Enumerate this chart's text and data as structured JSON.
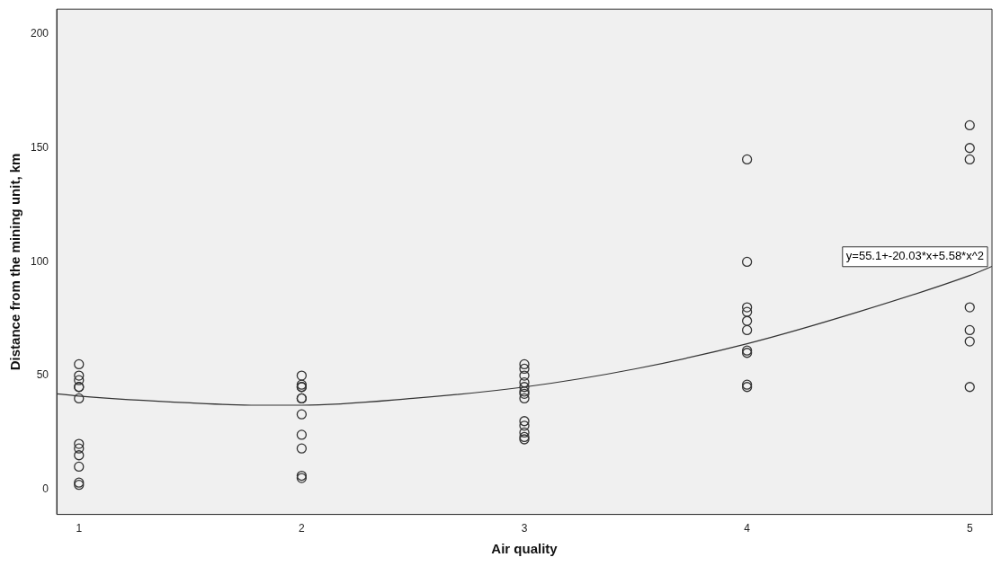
{
  "chart_data": {
    "type": "scatter",
    "xlabel": "Air quality",
    "ylabel": "Distance from the mining unit, km",
    "xlim": [
      0.9,
      5.1
    ],
    "ylim": [
      -11,
      211
    ],
    "xticks": [
      1,
      2,
      3,
      4,
      5
    ],
    "yticks": [
      0,
      50,
      100,
      150,
      200
    ],
    "grid": false,
    "legend": false,
    "marker": "circle",
    "series": [
      {
        "color": "#333333",
        "x": [
          1,
          1,
          1,
          1,
          1,
          1,
          1,
          1,
          1,
          1,
          1,
          1,
          2,
          2,
          2,
          2,
          2,
          2,
          2,
          2,
          2,
          2,
          2,
          3,
          3,
          3,
          3,
          3,
          3,
          3,
          3,
          3,
          3,
          3,
          3,
          3,
          4,
          4,
          4,
          4,
          4,
          4,
          4,
          4,
          4,
          4,
          5,
          5,
          5,
          5,
          5,
          5,
          5
        ],
        "values": [
          55,
          50,
          48,
          45,
          45,
          40,
          20,
          18,
          15,
          10,
          3,
          2,
          50,
          46,
          45,
          45,
          40,
          40,
          33,
          24,
          18,
          6,
          5,
          55,
          53,
          50,
          47,
          45,
          43,
          42,
          40,
          30,
          28,
          25,
          23,
          22,
          145,
          100,
          80,
          78,
          74,
          70,
          61,
          60,
          46,
          45,
          160,
          150,
          145,
          80,
          70,
          65,
          45
        ]
      },
      {
        "type": "line",
        "color": "#333333",
        "marker": "none",
        "x": [
          0.9,
          1,
          1.5,
          1.8,
          2,
          2.5,
          3,
          3.5,
          4,
          4.5,
          5,
          5.1
        ],
        "values": [
          42,
          41,
          38,
          37,
          37,
          40,
          45,
          53,
          64,
          78,
          94,
          98
        ]
      }
    ],
    "annotations": [
      "y=55.1+-20.03*x+5.58*x^2"
    ]
  }
}
